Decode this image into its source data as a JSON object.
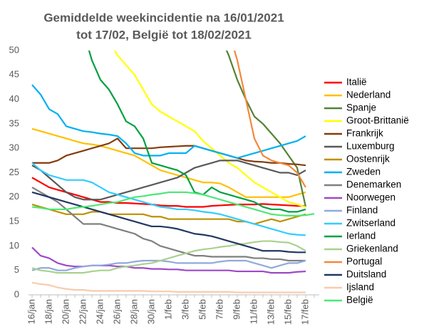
{
  "chart_data": {
    "type": "line",
    "title": [
      "Gemiddelde weekincidentie  na 16/01/2021",
      "tot 17/02, België tot 18/02/2021"
    ],
    "categories": [
      "16/jan",
      null,
      "18/jan",
      null,
      "20/jan",
      null,
      "22/jan",
      null,
      "24/jan",
      null,
      "26/jan",
      null,
      "28/jan",
      null,
      "30/jan",
      null,
      "1/feb",
      null,
      "3/feb",
      null,
      "5/feb",
      null,
      "7/feb",
      null,
      "9/feb",
      null,
      "11/feb",
      null,
      "13/feb",
      null,
      "15/feb",
      null,
      "17/feb",
      null
    ],
    "ylim": [
      0,
      50
    ],
    "yticks": [
      0,
      5,
      10,
      15,
      20,
      25,
      30,
      35,
      40,
      45,
      50
    ],
    "grid": false,
    "series": [
      {
        "name": "Italië",
        "color": "#ff0000",
        "values": [
          24,
          23,
          22,
          21.5,
          21,
          20.5,
          20,
          19.5,
          19,
          19,
          18.8,
          18.8,
          18.7,
          18.6,
          18.5,
          18.3,
          18.2,
          18.2,
          18,
          18,
          18,
          18.2,
          18.3,
          18.4,
          18.5,
          18.5,
          18.5,
          18.6,
          18.5,
          18.4,
          18.3,
          18.2,
          18.2,
          null
        ]
      },
      {
        "name": "Nederland",
        "color": "#ffc000",
        "values": [
          34,
          33.5,
          33,
          32.5,
          32,
          31.5,
          31,
          30.8,
          30.5,
          30,
          29.5,
          29,
          28.5,
          27.5,
          26.5,
          25.5,
          25,
          24.5,
          24,
          23.5,
          23,
          23,
          22.8,
          22,
          21,
          20,
          20,
          20,
          20,
          20,
          20,
          20.5,
          21,
          null
        ]
      },
      {
        "name": "Spanje",
        "color": "#548235",
        "values": [
          null,
          null,
          null,
          null,
          null,
          null,
          null,
          null,
          null,
          null,
          null,
          null,
          null,
          null,
          null,
          null,
          null,
          null,
          null,
          null,
          null,
          null,
          53,
          49,
          44,
          40,
          36.5,
          35,
          33,
          31,
          28.5,
          26,
          18,
          null
        ]
      },
      {
        "name": "Groot-Brittanië",
        "color": "#ffff00",
        "values": [
          null,
          null,
          null,
          null,
          null,
          null,
          null,
          null,
          null,
          52,
          49,
          47,
          45,
          42,
          39,
          37.5,
          36.5,
          35.5,
          34.5,
          33.5,
          31.5,
          30,
          28.5,
          27,
          26,
          24.5,
          23,
          22,
          21,
          20,
          19,
          18.5,
          18,
          null
        ]
      },
      {
        "name": "Frankrijk",
        "color": "#843c0c",
        "values": [
          27,
          27,
          27,
          27.5,
          28.5,
          29,
          29.5,
          30,
          30.5,
          31,
          32,
          30,
          30,
          30,
          30,
          30.2,
          30.3,
          30.4,
          30.5,
          30.5,
          30,
          29.5,
          29,
          28.5,
          28,
          27.5,
          27.3,
          27.2,
          27,
          27,
          26.8,
          26.7,
          26.5,
          null
        ]
      },
      {
        "name": "Luxemburg",
        "color": "#595959",
        "values": [
          26.5,
          25.5,
          24,
          22.5,
          21,
          20,
          19.5,
          19.5,
          19.5,
          20,
          20.5,
          21,
          21.5,
          22,
          22.5,
          23,
          23.5,
          24,
          25,
          26,
          26.5,
          27,
          27.5,
          27.5,
          27.5,
          27,
          26.5,
          26,
          25.5,
          25,
          25,
          24.5,
          25.5,
          null
        ]
      },
      {
        "name": "Oostenrijk",
        "color": "#bf9000",
        "values": [
          18.5,
          18,
          17.5,
          17,
          16.5,
          16.5,
          16.5,
          17,
          17,
          16.5,
          16.5,
          16.5,
          16.5,
          16.5,
          16,
          16,
          15.5,
          15.5,
          15.5,
          15.5,
          15.5,
          15.5,
          15.5,
          15.5,
          15,
          15,
          14.5,
          15,
          15.5,
          15,
          15.5,
          16,
          16.5,
          null
        ]
      },
      {
        "name": "Zweden",
        "color": "#00b0f0",
        "values": [
          43,
          41,
          38,
          37,
          34.5,
          34,
          33.5,
          33.3,
          33,
          32.8,
          32.5,
          31,
          29,
          28.5,
          28.5,
          28.5,
          29,
          29,
          29,
          30.5,
          30,
          29.5,
          29,
          28.5,
          28,
          28.5,
          29,
          29.5,
          30,
          30.5,
          31,
          31.5,
          32.5,
          null
        ]
      },
      {
        "name": "Denemarken",
        "color": "#7f7f7f",
        "values": [
          22,
          21,
          20,
          19,
          17.5,
          16,
          14.5,
          14.5,
          14.5,
          14,
          13.5,
          13,
          12.5,
          11.5,
          11,
          10,
          9.5,
          9,
          8.5,
          8,
          8,
          7.8,
          7.8,
          7.8,
          7.8,
          7.8,
          7.5,
          7.5,
          7.3,
          7.3,
          7,
          7,
          7,
          null
        ]
      },
      {
        "name": "Noorwegen",
        "color": "#9e48c8",
        "values": [
          9.7,
          8,
          7.5,
          6.5,
          6,
          5.8,
          5.8,
          6,
          6,
          6,
          5.8,
          5.8,
          5.5,
          5.5,
          5.3,
          5.3,
          5.2,
          5.2,
          5,
          5,
          5,
          5,
          5,
          5,
          4.8,
          4.8,
          4.8,
          4.8,
          4.5,
          4.5,
          4.5,
          4.7,
          4.8,
          null
        ]
      },
      {
        "name": "Finland",
        "color": "#8faadc",
        "values": [
          5,
          5.5,
          5.5,
          5,
          5,
          5.5,
          5.8,
          6,
          6,
          6.2,
          6.5,
          6.5,
          6.8,
          7,
          7,
          7,
          6.8,
          6.5,
          6.5,
          6.5,
          6.5,
          6.5,
          6.8,
          7,
          7,
          7,
          6.5,
          6,
          5.5,
          6,
          6.5,
          6.5,
          7,
          null
        ]
      },
      {
        "name": "Zwitserland",
        "color": "#33ccff",
        "values": [
          27,
          25.5,
          24.5,
          24,
          23.5,
          23.5,
          23.5,
          23,
          22,
          21,
          20.5,
          20,
          19.5,
          19,
          18.5,
          18,
          17.8,
          17.5,
          17.5,
          17.3,
          17,
          16.8,
          16.5,
          16,
          15.5,
          15,
          14.5,
          14,
          13.5,
          13,
          12.5,
          12.3,
          12.2,
          null
        ]
      },
      {
        "name": "Ierland",
        "color": "#00a040",
        "values": [
          null,
          null,
          null,
          null,
          null,
          null,
          54,
          48,
          44,
          42,
          39,
          35.5,
          34.5,
          32,
          27,
          26.5,
          26,
          25.5,
          24.5,
          21,
          20.5,
          22,
          21,
          20.5,
          20,
          19.5,
          19,
          18,
          17.5,
          17.5,
          17,
          17,
          17.5,
          null
        ]
      },
      {
        "name": "Griekenland",
        "color": "#a9d18e",
        "values": [
          5.5,
          5,
          4.8,
          4.5,
          4.5,
          4.5,
          4.5,
          4.8,
          5,
          5,
          5.5,
          5.8,
          6,
          6.3,
          6.5,
          7,
          7.5,
          8,
          8.5,
          9,
          9.3,
          9.5,
          9.8,
          10,
          10.3,
          10.5,
          10.8,
          11,
          11,
          10.8,
          10.7,
          10,
          9,
          null
        ]
      },
      {
        "name": "Portugal",
        "color": "#f4883a",
        "values": [
          null,
          null,
          null,
          null,
          null,
          null,
          null,
          null,
          null,
          null,
          null,
          null,
          null,
          null,
          null,
          null,
          null,
          null,
          null,
          null,
          null,
          null,
          null,
          54,
          48,
          40,
          32,
          28.5,
          27.5,
          27,
          26.5,
          25,
          22,
          null
        ]
      },
      {
        "name": "Duitsland",
        "color": "#203864",
        "values": [
          21,
          20.5,
          20,
          19.5,
          19,
          18.5,
          18,
          17.5,
          17,
          16.5,
          16,
          15.5,
          15,
          14.5,
          14,
          14,
          13.8,
          13.5,
          13,
          12.5,
          12.3,
          12,
          11.5,
          11,
          10.5,
          10,
          9.5,
          9,
          9,
          9,
          8.8,
          8.7,
          8.7,
          null
        ]
      },
      {
        "name": "Ijsland",
        "color": "#f8cbad",
        "values": [
          2.5,
          2.2,
          2,
          1.5,
          1.2,
          1,
          1,
          0.8,
          0.8,
          0.8,
          0.8,
          0.8,
          0.8,
          0.8,
          0.7,
          0.7,
          0.7,
          0.6,
          0.6,
          0.6,
          0.6,
          0.6,
          0.6,
          0.6,
          0.5,
          0.5,
          0.5,
          0.5,
          0.5,
          0.5,
          0.5,
          0.5,
          0.5,
          null
        ]
      },
      {
        "name": "België",
        "color": "#4ce876",
        "values": [
          18,
          17.8,
          17.5,
          17.5,
          17.5,
          17.8,
          18,
          18.2,
          18.5,
          18.8,
          19,
          19.5,
          20,
          20.2,
          20.5,
          20.7,
          21,
          21,
          21,
          20.8,
          20.5,
          20,
          19.5,
          19,
          18.5,
          18,
          17.5,
          17,
          16.5,
          16.3,
          16.2,
          16.2,
          16.3,
          16.6
        ]
      }
    ]
  }
}
